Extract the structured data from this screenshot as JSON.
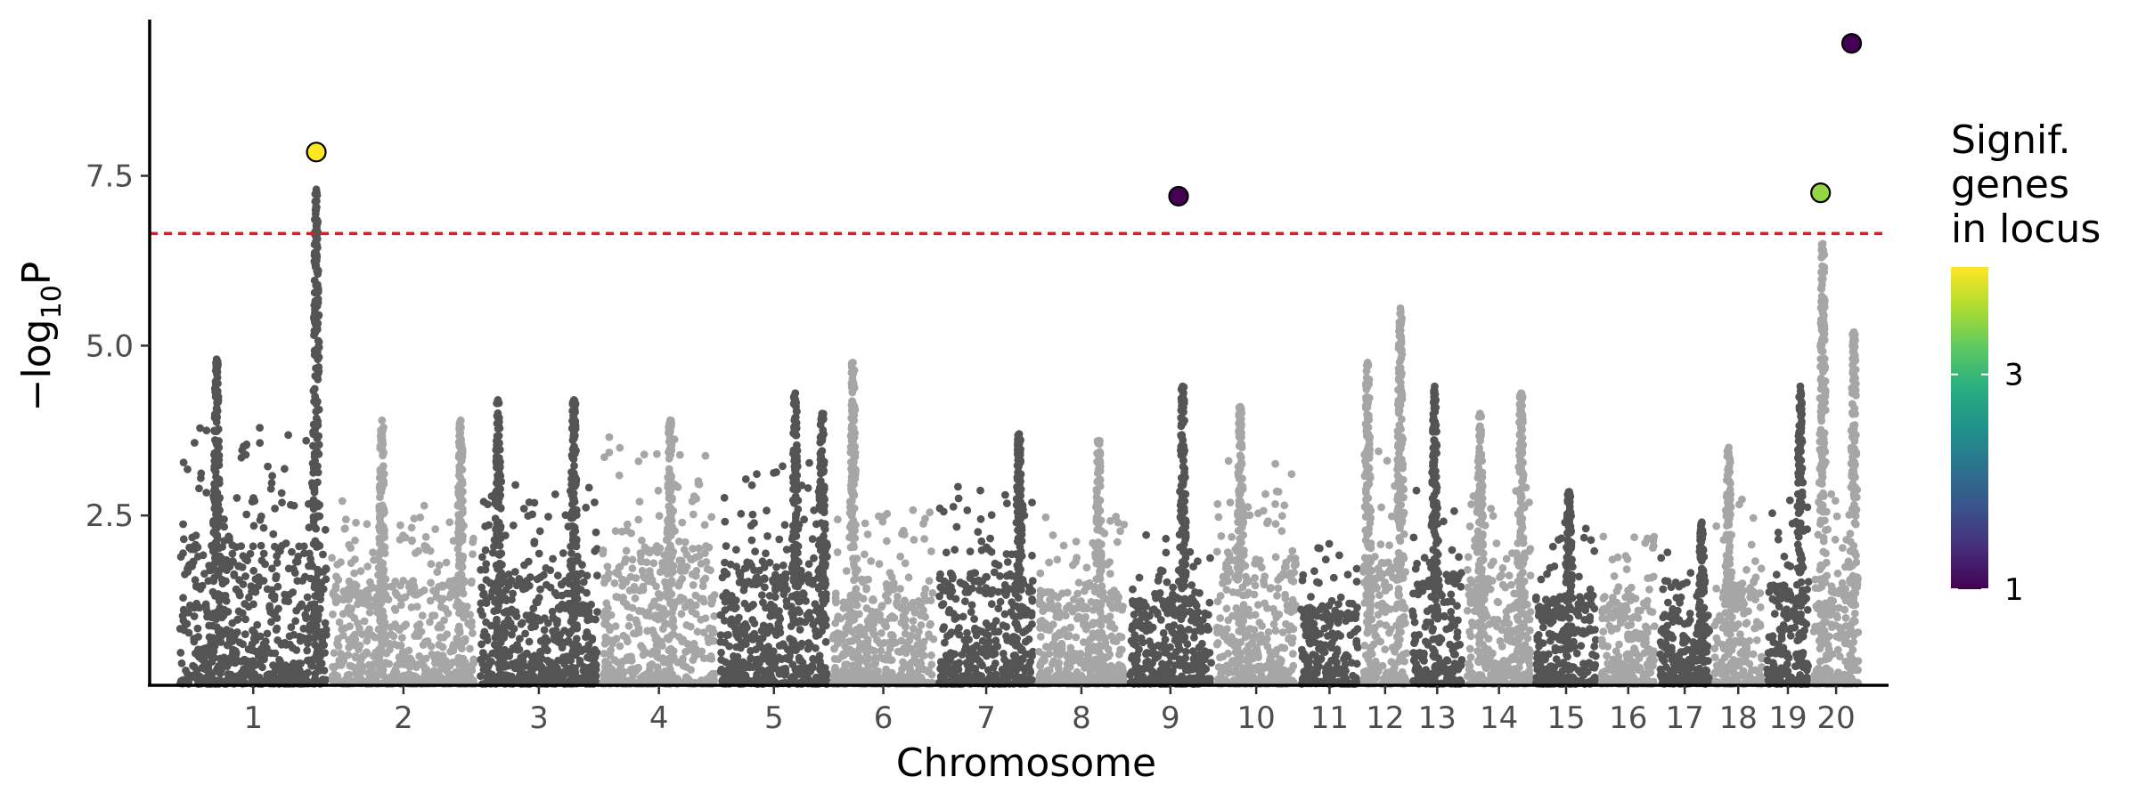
{
  "chart_data": {
    "type": "scatter",
    "subtype": "manhattan",
    "title": "",
    "xlabel": "Chromosome",
    "ylabel_parts": [
      "−log",
      "10",
      "P"
    ],
    "ylim": [
      0,
      9.8
    ],
    "y_ticks": [
      2.5,
      5.0,
      7.5
    ],
    "y_tick_labels": [
      "2.5",
      "5.0",
      "7.5"
    ],
    "grid": false,
    "significance_threshold": 6.65,
    "threshold_color": "#e41a1c",
    "point_colors": {
      "odd_chromosome": "#545454",
      "even_chromosome": "#a6a6a6"
    },
    "chromosomes": [
      {
        "label": "1",
        "length": 248,
        "typical_max": 3.8,
        "peaks": [
          [
            0.25,
            4.8
          ],
          [
            0.93,
            7.3
          ]
        ]
      },
      {
        "label": "2",
        "length": 242,
        "typical_max": 2.8,
        "peaks": [
          [
            0.35,
            3.9
          ],
          [
            0.9,
            3.9
          ]
        ]
      },
      {
        "label": "3",
        "length": 198,
        "typical_max": 3.0,
        "peaks": [
          [
            0.15,
            4.2
          ],
          [
            0.8,
            4.2
          ]
        ]
      },
      {
        "label": "4",
        "length": 190,
        "typical_max": 3.7,
        "peaks": [
          [
            0.6,
            3.9
          ]
        ]
      },
      {
        "label": "5",
        "length": 181,
        "typical_max": 3.3,
        "peaks": [
          [
            0.7,
            4.3
          ],
          [
            0.95,
            4.0
          ]
        ]
      },
      {
        "label": "6",
        "length": 171,
        "typical_max": 2.6,
        "peaks": [
          [
            0.2,
            4.75
          ]
        ]
      },
      {
        "label": "7",
        "length": 159,
        "typical_max": 3.0,
        "peaks": [
          [
            0.85,
            3.7
          ]
        ]
      },
      {
        "label": "8",
        "length": 145,
        "typical_max": 2.5,
        "peaks": [
          [
            0.7,
            3.6
          ]
        ]
      },
      {
        "label": "9",
        "length": 138,
        "typical_max": 2.3,
        "peaks": [
          [
            0.65,
            4.4
          ]
        ]
      },
      {
        "label": "10",
        "length": 134,
        "typical_max": 3.4,
        "peaks": [
          [
            0.3,
            4.1
          ]
        ]
      },
      {
        "label": "11",
        "length": 96,
        "typical_max": 2.2,
        "peaks": []
      },
      {
        "label": "12",
        "length": 74,
        "typical_max": 3.5,
        "peaks": [
          [
            0.1,
            4.75
          ],
          [
            0.85,
            5.55
          ]
        ]
      },
      {
        "label": "13",
        "length": 84,
        "typical_max": 3.0,
        "peaks": [
          [
            0.45,
            4.4
          ]
        ]
      },
      {
        "label": "14",
        "length": 107,
        "typical_max": 3.0,
        "peaks": [
          [
            0.2,
            4.0
          ],
          [
            0.85,
            4.3
          ]
        ]
      },
      {
        "label": "15",
        "length": 102,
        "typical_max": 2.4,
        "peaks": [
          [
            0.55,
            2.85
          ]
        ]
      },
      {
        "label": "16",
        "length": 90,
        "typical_max": 2.4,
        "peaks": []
      },
      {
        "label": "17",
        "length": 83,
        "typical_max": 2.0,
        "peaks": [
          [
            0.85,
            2.4
          ]
        ]
      },
      {
        "label": "18",
        "length": 80,
        "typical_max": 2.8,
        "peaks": [
          [
            0.3,
            3.5
          ]
        ]
      },
      {
        "label": "19",
        "length": 70,
        "typical_max": 2.8,
        "peaks": [
          [
            0.8,
            4.4
          ]
        ]
      },
      {
        "label": "20",
        "length": 75,
        "typical_max": 3.0,
        "peaks": [
          [
            0.2,
            6.5
          ],
          [
            0.9,
            5.2
          ]
        ]
      }
    ],
    "highlighted_loci": [
      {
        "chromosome": "1",
        "position_fraction": 0.93,
        "y": 7.85,
        "genes_in_locus": 4
      },
      {
        "chromosome": "9",
        "position_fraction": 0.6,
        "y": 7.2,
        "genes_in_locus": 1
      },
      {
        "chromosome": "20",
        "position_fraction": 0.15,
        "y": 7.25,
        "genes_in_locus": 3.5
      },
      {
        "chromosome": "20",
        "position_fraction": 0.85,
        "y": 9.45,
        "genes_in_locus": 1
      }
    ],
    "legend": {
      "title_lines": [
        "Signif.",
        "genes",
        "in locus"
      ],
      "scale": "viridis",
      "range": [
        1,
        4
      ],
      "ticks": [
        1,
        3
      ],
      "tick_labels": [
        "1",
        "3"
      ],
      "placement": "right"
    }
  }
}
